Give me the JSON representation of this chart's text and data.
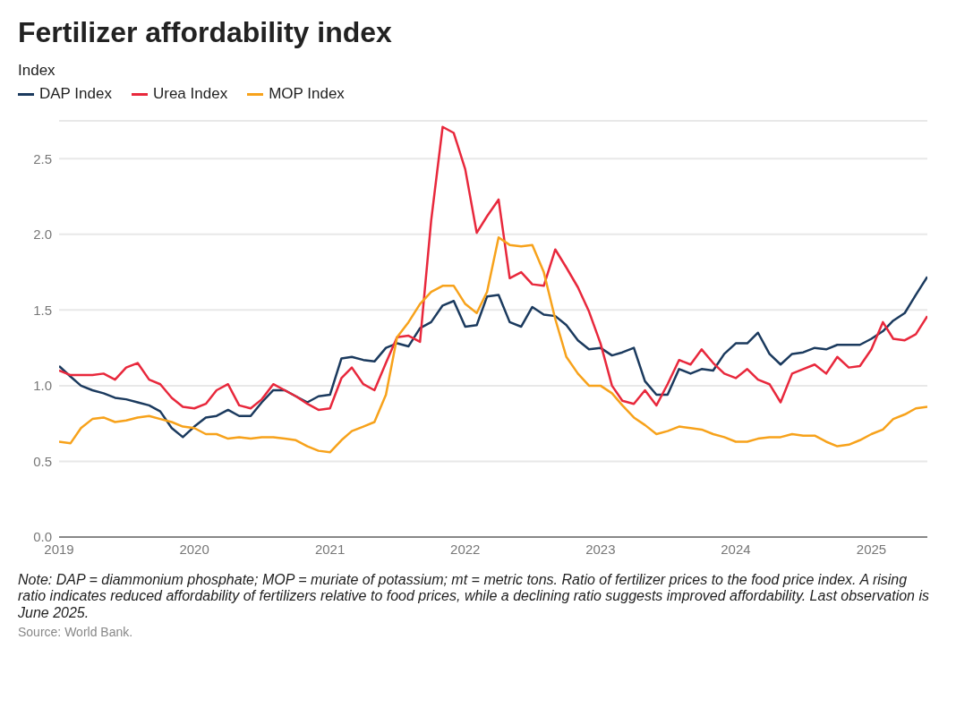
{
  "chart_data": {
    "type": "line",
    "title": "Fertilizer affordability index",
    "ylabel": "Index",
    "x": [
      "2019-01",
      "2019-02",
      "2019-03",
      "2019-04",
      "2019-05",
      "2019-06",
      "2019-07",
      "2019-08",
      "2019-09",
      "2019-10",
      "2019-11",
      "2019-12",
      "2020-01",
      "2020-02",
      "2020-03",
      "2020-04",
      "2020-05",
      "2020-06",
      "2020-07",
      "2020-08",
      "2020-09",
      "2020-10",
      "2020-11",
      "2020-12",
      "2021-01",
      "2021-02",
      "2021-03",
      "2021-04",
      "2021-05",
      "2021-06",
      "2021-07",
      "2021-08",
      "2021-09",
      "2021-10",
      "2021-11",
      "2021-12",
      "2022-01",
      "2022-02",
      "2022-03",
      "2022-04",
      "2022-05",
      "2022-06",
      "2022-07",
      "2022-08",
      "2022-09",
      "2022-10",
      "2022-11",
      "2022-12",
      "2023-01",
      "2023-02",
      "2023-03",
      "2023-04",
      "2023-05",
      "2023-06",
      "2023-07",
      "2023-08",
      "2023-09",
      "2023-10",
      "2023-11",
      "2023-12",
      "2024-01",
      "2024-02",
      "2024-03",
      "2024-04",
      "2024-05",
      "2024-06",
      "2024-07",
      "2024-08",
      "2024-09",
      "2024-10",
      "2024-11",
      "2024-12",
      "2025-01",
      "2025-02",
      "2025-03",
      "2025-04",
      "2025-05",
      "2025-06"
    ],
    "series": [
      {
        "name": "DAP Index",
        "color": "#1b3a5e",
        "values": [
          1.13,
          1.06,
          1.0,
          0.97,
          0.95,
          0.92,
          0.91,
          0.89,
          0.87,
          0.83,
          0.72,
          0.66,
          0.73,
          0.79,
          0.8,
          0.84,
          0.8,
          0.8,
          0.89,
          0.97,
          0.97,
          0.93,
          0.89,
          0.93,
          0.94,
          1.18,
          1.19,
          1.17,
          1.16,
          1.25,
          1.28,
          1.26,
          1.38,
          1.42,
          1.53,
          1.56,
          1.39,
          1.4,
          1.59,
          1.6,
          1.42,
          1.39,
          1.52,
          1.47,
          1.46,
          1.4,
          1.3,
          1.24,
          1.25,
          1.2,
          1.22,
          1.25,
          1.03,
          0.94,
          0.94,
          1.11,
          1.08,
          1.11,
          1.1,
          1.21,
          1.28,
          1.28,
          1.35,
          1.21,
          1.14,
          1.21,
          1.22,
          1.25,
          1.24,
          1.27,
          1.27,
          1.27,
          1.31,
          1.36,
          1.43,
          1.48,
          1.6,
          1.72
        ]
      },
      {
        "name": "Urea Index",
        "color": "#e8283c",
        "values": [
          1.1,
          1.07,
          1.07,
          1.07,
          1.08,
          1.04,
          1.12,
          1.15,
          1.04,
          1.01,
          0.92,
          0.86,
          0.85,
          0.88,
          0.97,
          1.01,
          0.87,
          0.85,
          0.91,
          1.01,
          0.97,
          0.93,
          0.88,
          0.84,
          0.85,
          1.05,
          1.12,
          1.01,
          0.97,
          1.15,
          1.32,
          1.33,
          1.29,
          2.09,
          2.71,
          2.67,
          2.43,
          2.01,
          2.12,
          2.23,
          1.71,
          1.75,
          1.67,
          1.66,
          1.9,
          1.78,
          1.65,
          1.49,
          1.28,
          1.0,
          0.9,
          0.88,
          0.97,
          0.87,
          1.01,
          1.17,
          1.14,
          1.24,
          1.15,
          1.08,
          1.05,
          1.11,
          1.04,
          1.01,
          0.89,
          1.08,
          1.11,
          1.14,
          1.08,
          1.19,
          1.12,
          1.13,
          1.24,
          1.42,
          1.31,
          1.3,
          1.34,
          1.46
        ]
      },
      {
        "name": "MOP Index",
        "color": "#f7a21b",
        "values": [
          0.63,
          0.62,
          0.72,
          0.78,
          0.79,
          0.76,
          0.77,
          0.79,
          0.8,
          0.78,
          0.76,
          0.73,
          0.72,
          0.68,
          0.68,
          0.65,
          0.66,
          0.65,
          0.66,
          0.66,
          0.65,
          0.64,
          0.6,
          0.57,
          0.56,
          0.64,
          0.7,
          0.73,
          0.76,
          0.94,
          1.32,
          1.42,
          1.54,
          1.62,
          1.66,
          1.66,
          1.54,
          1.48,
          1.62,
          1.98,
          1.93,
          1.92,
          1.93,
          1.75,
          1.44,
          1.19,
          1.08,
          1.0,
          1.0,
          0.95,
          0.87,
          0.79,
          0.74,
          0.68,
          0.7,
          0.73,
          0.72,
          0.71,
          0.68,
          0.66,
          0.63,
          0.63,
          0.65,
          0.66,
          0.66,
          0.68,
          0.67,
          0.67,
          0.63,
          0.6,
          0.61,
          0.64,
          0.68,
          0.71,
          0.78,
          0.81,
          0.85,
          0.86
        ]
      }
    ],
    "xlim": [
      "2019-01",
      "2025-06"
    ],
    "xticks": [
      "2019",
      "2020",
      "2021",
      "2022",
      "2023",
      "2024",
      "2025"
    ],
    "ylim": [
      0,
      2.75
    ],
    "yticks": [
      {
        "value": 0,
        "label": "0.0"
      },
      {
        "value": 0.5,
        "label": "0.5"
      },
      {
        "value": 1,
        "label": "1.0"
      },
      {
        "value": 1.5,
        "label": "1.5"
      },
      {
        "value": 2,
        "label": "2.0"
      },
      {
        "value": 2.5,
        "label": "2.5"
      }
    ],
    "grid": "y",
    "legend": "top left",
    "marker": "none",
    "line_style": "solid",
    "annotations": [
      "Note: DAP = diammonium phosphate; MOP = muriate of potassium; mt = metric tons. Ratio of fertilizer prices to the food price index. A rising ratio indicates reduced affordability of fertilizers relative to food prices, while a declining ratio suggests improved affordability. Last observation is June 2025.",
      "Source: World Bank."
    ]
  }
}
